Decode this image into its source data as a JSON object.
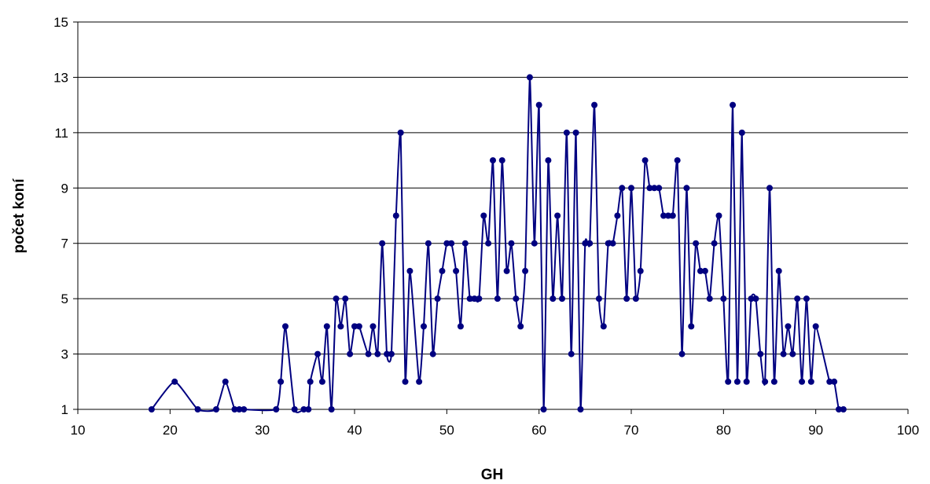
{
  "chart_data": {
    "type": "line",
    "title": "",
    "xlabel": "GH",
    "ylabel": "počet koní",
    "xlim": [
      10,
      100
    ],
    "ylim": [
      1,
      15
    ],
    "xticks": [
      10,
      20,
      30,
      40,
      50,
      60,
      70,
      80,
      90,
      100
    ],
    "yticks": [
      1,
      3,
      5,
      7,
      9,
      11,
      13,
      15
    ],
    "grid": "horizontal",
    "legend": "none",
    "line_color": "#000080",
    "series": [
      {
        "x": [
          18,
          20.5,
          23,
          25,
          26,
          27,
          27.5,
          28,
          31.5,
          32,
          32.5,
          33.5,
          34.5,
          35,
          35.2,
          36,
          36.5,
          37,
          37.5,
          38,
          38.5,
          39,
          39.5,
          40,
          40.5,
          41.5,
          42,
          42.5,
          43,
          43.5,
          44,
          44.5,
          45,
          45.5,
          46,
          47,
          47.5,
          48,
          48.5,
          49,
          49.5,
          50,
          50.5,
          51,
          51.5,
          52,
          52.5,
          53,
          53.5,
          54,
          54.5,
          55,
          55.5,
          56,
          56.5,
          57,
          57.5,
          58,
          58.5,
          59,
          59.5,
          60,
          60.5,
          61,
          61.5,
          62,
          62.5,
          63,
          63.5,
          64,
          64.5,
          65,
          65.5,
          66,
          66.5,
          67,
          67.5,
          68,
          68.5,
          69,
          69.5,
          70,
          70.5,
          71,
          71.5,
          72,
          72.5,
          73,
          73.5,
          74,
          74.5,
          75,
          75.5,
          76,
          76.5,
          77,
          77.5,
          78,
          78.5,
          79,
          79.5,
          80,
          80.5,
          81,
          81.5,
          82,
          82.5,
          83,
          83.5,
          84,
          84.5,
          85,
          85.5,
          86,
          86.5,
          87,
          87.5,
          88,
          88.5,
          89,
          89.5,
          90,
          91.5,
          92,
          92.5,
          93
        ],
        "y": [
          1,
          2,
          1,
          1,
          2,
          1,
          1,
          1,
          1,
          2,
          4,
          1,
          1,
          1,
          2,
          3,
          2,
          4,
          1,
          5,
          4,
          5,
          3,
          4,
          4,
          3,
          4,
          3,
          7,
          3,
          3,
          8,
          11,
          2,
          6,
          2,
          4,
          7,
          3,
          5,
          6,
          7,
          7,
          6,
          4,
          7,
          5,
          5,
          5,
          8,
          7,
          10,
          5,
          10,
          6,
          7,
          5,
          4,
          6,
          13,
          7,
          12,
          1,
          10,
          5,
          8,
          5,
          11,
          3,
          11,
          1,
          7,
          7,
          12,
          5,
          4,
          7,
          7,
          8,
          9,
          5,
          9,
          5,
          6,
          10,
          9,
          9,
          9,
          8,
          8,
          8,
          10,
          3,
          9,
          4,
          7,
          6,
          6,
          5,
          7,
          8,
          5,
          2,
          12,
          2,
          11,
          2,
          5,
          5,
          3,
          2,
          9,
          2,
          6,
          3,
          4,
          3,
          5,
          2,
          5,
          2,
          4,
          2,
          2,
          1,
          1
        ]
      }
    ]
  }
}
